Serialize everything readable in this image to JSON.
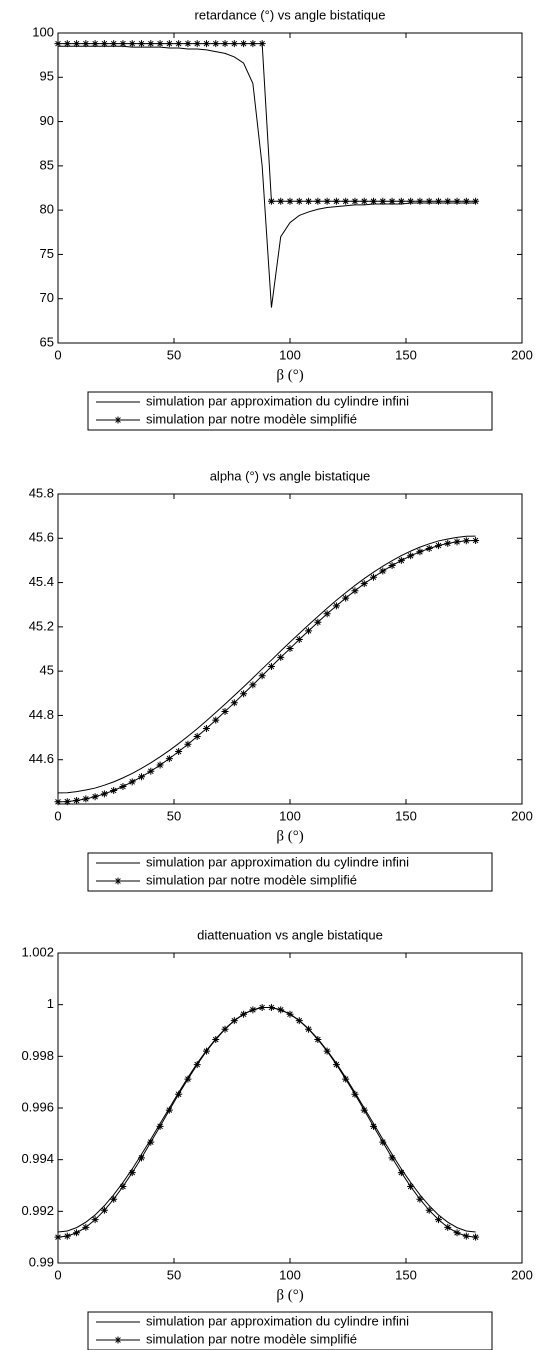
{
  "chart_data": [
    {
      "type": "line",
      "title": "retardance (°) vs angle bistatique",
      "xlabel": "β (°)",
      "xlim": [
        0,
        200
      ],
      "xticks": [
        0,
        50,
        100,
        150,
        200
      ],
      "ylim": [
        65,
        100
      ],
      "yticks": [
        65,
        70,
        75,
        80,
        85,
        90,
        95,
        100
      ],
      "legend": "bottom",
      "x": [
        0,
        4,
        8,
        12,
        16,
        20,
        24,
        28,
        32,
        36,
        40,
        44,
        48,
        52,
        56,
        60,
        64,
        68,
        72,
        76,
        80,
        84,
        88,
        92,
        96,
        100,
        104,
        108,
        112,
        116,
        120,
        124,
        128,
        132,
        136,
        140,
        144,
        148,
        152,
        156,
        160,
        164,
        168,
        172,
        176,
        180
      ],
      "series": [
        {
          "name": "simulation par approximation du cylindre infini",
          "color": "#000000",
          "marker": "none",
          "values": [
            98.5,
            98.5,
            98.5,
            98.5,
            98.5,
            98.5,
            98.5,
            98.5,
            98.4,
            98.4,
            98.4,
            98.4,
            98.3,
            98.3,
            98.2,
            98.2,
            98.1,
            97.9,
            97.7,
            97.3,
            96.6,
            94.3,
            85.0,
            69.0,
            77.0,
            78.6,
            79.4,
            79.8,
            80.1,
            80.3,
            80.4,
            80.5,
            80.6,
            80.6,
            80.7,
            80.7,
            80.7,
            80.7,
            80.8,
            80.8,
            80.8,
            80.8,
            80.8,
            80.8,
            80.8,
            80.8
          ]
        },
        {
          "name": "simulation par notre modèle simplifié",
          "color": "#000000",
          "marker": "star",
          "values": [
            98.8,
            98.8,
            98.8,
            98.8,
            98.8,
            98.8,
            98.8,
            98.8,
            98.8,
            98.8,
            98.8,
            98.8,
            98.8,
            98.8,
            98.8,
            98.8,
            98.8,
            98.8,
            98.8,
            98.8,
            98.8,
            98.8,
            98.8,
            81.0,
            81.0,
            81.0,
            81.0,
            81.0,
            81.0,
            81.0,
            81.0,
            81.0,
            81.0,
            81.0,
            81.0,
            81.0,
            81.0,
            81.0,
            81.0,
            81.0,
            81.0,
            81.0,
            81.0,
            81.0,
            81.0,
            81.0
          ]
        }
      ]
    },
    {
      "type": "line",
      "title": "alpha (°) vs angle bistatique",
      "xlabel": "β (°)",
      "xlim": [
        0,
        200
      ],
      "xticks": [
        0,
        50,
        100,
        150,
        200
      ],
      "ylim": [
        44.4,
        45.8
      ],
      "yticks": [
        44.6,
        44.8,
        45,
        45.2,
        45.4,
        45.6,
        45.8
      ],
      "legend": "bottom",
      "x": [
        0,
        4,
        8,
        12,
        16,
        20,
        24,
        28,
        32,
        36,
        40,
        44,
        48,
        52,
        56,
        60,
        64,
        68,
        72,
        76,
        80,
        84,
        88,
        92,
        96,
        100,
        104,
        108,
        112,
        116,
        120,
        124,
        128,
        132,
        136,
        140,
        144,
        148,
        152,
        156,
        160,
        164,
        168,
        172,
        176,
        180
      ],
      "series": [
        {
          "name": "simulation par approximation du cylindre infini",
          "color": "#000000",
          "marker": "none",
          "values": [
            44.45,
            44.451,
            44.456,
            44.463,
            44.472,
            44.485,
            44.5,
            44.518,
            44.538,
            44.561,
            44.586,
            44.613,
            44.642,
            44.673,
            44.706,
            44.74,
            44.776,
            44.813,
            44.851,
            44.89,
            44.929,
            44.969,
            45.01,
            45.05,
            45.091,
            45.131,
            45.17,
            45.209,
            45.247,
            45.284,
            45.32,
            45.354,
            45.387,
            45.418,
            45.447,
            45.474,
            45.499,
            45.522,
            45.542,
            45.56,
            45.575,
            45.588,
            45.597,
            45.604,
            45.609,
            45.61
          ]
        },
        {
          "name": "simulation par notre modèle simplifié",
          "color": "#000000",
          "marker": "star",
          "values": [
            44.41,
            44.411,
            44.416,
            44.423,
            44.433,
            44.446,
            44.461,
            44.479,
            44.5,
            44.523,
            44.548,
            44.576,
            44.605,
            44.637,
            44.67,
            44.705,
            44.741,
            44.779,
            44.818,
            44.857,
            44.898,
            44.938,
            44.979,
            45.021,
            45.062,
            45.102,
            45.143,
            45.182,
            45.221,
            45.259,
            45.295,
            45.33,
            45.363,
            45.395,
            45.424,
            45.452,
            45.477,
            45.5,
            45.521,
            45.539,
            45.554,
            45.567,
            45.577,
            45.584,
            45.589,
            45.59
          ]
        }
      ]
    },
    {
      "type": "line",
      "title": "diattenuation vs angle bistatique",
      "xlabel": "β (°)",
      "xlim": [
        0,
        200
      ],
      "xticks": [
        0,
        50,
        100,
        150,
        200
      ],
      "ylim": [
        0.99,
        1.002
      ],
      "yticks": [
        0.99,
        0.992,
        0.994,
        0.996,
        0.998,
        1,
        1.002
      ],
      "legend": "bottom",
      "x": [
        0,
        4,
        8,
        12,
        16,
        20,
        24,
        28,
        32,
        36,
        40,
        44,
        48,
        52,
        56,
        60,
        64,
        68,
        72,
        76,
        80,
        84,
        88,
        92,
        96,
        100,
        104,
        108,
        112,
        116,
        120,
        124,
        128,
        132,
        136,
        140,
        144,
        148,
        152,
        156,
        160,
        164,
        168,
        172,
        176,
        180
      ],
      "series": [
        {
          "name": "simulation par approximation du cylindre infini",
          "color": "#000000",
          "marker": "none",
          "values": [
            0.9912,
            0.99124,
            0.99137,
            0.99158,
            0.99186,
            0.99222,
            0.99264,
            0.99312,
            0.99364,
            0.99421,
            0.99479,
            0.9954,
            0.996,
            0.9966,
            0.99718,
            0.99773,
            0.99823,
            0.99868,
            0.99907,
            0.99939,
            0.99964,
            0.9998,
            0.99989,
            0.99989,
            0.9998,
            0.99964,
            0.99939,
            0.99907,
            0.99868,
            0.99823,
            0.99773,
            0.99718,
            0.9966,
            0.996,
            0.9954,
            0.99479,
            0.99421,
            0.99364,
            0.99312,
            0.99264,
            0.99222,
            0.99186,
            0.99158,
            0.99137,
            0.99124,
            0.9912
          ]
        },
        {
          "name": "simulation par notre modèle simplifié",
          "color": "#000000",
          "marker": "star",
          "values": [
            0.991,
            0.99104,
            0.99117,
            0.99138,
            0.99168,
            0.99204,
            0.99247,
            0.99296,
            0.9935,
            0.99407,
            0.99468,
            0.99529,
            0.99592,
            0.99653,
            0.99712,
            0.99768,
            0.9982,
            0.99865,
            0.99905,
            0.99938,
            0.99963,
            0.9998,
            0.99989,
            0.99989,
            0.9998,
            0.99963,
            0.99938,
            0.99905,
            0.99865,
            0.9982,
            0.99768,
            0.99712,
            0.99653,
            0.99592,
            0.99529,
            0.99468,
            0.99407,
            0.9935,
            0.99296,
            0.99247,
            0.99204,
            0.99168,
            0.99138,
            0.99117,
            0.99104,
            0.991
          ]
        }
      ]
    }
  ]
}
